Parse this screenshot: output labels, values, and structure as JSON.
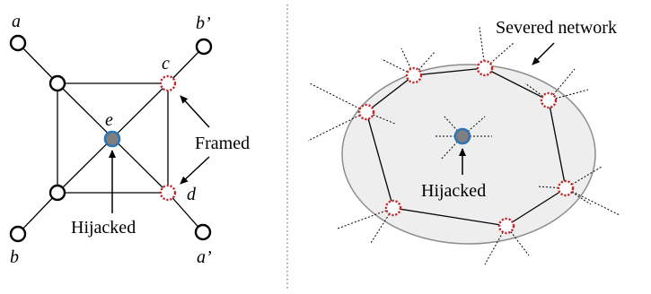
{
  "left_panel": {
    "node_labels": {
      "a": "a",
      "b_prime": "b’",
      "c": "c",
      "e": "e",
      "d": "d",
      "b": "b",
      "a_prime": "a’"
    },
    "framed_label": "Framed",
    "hijacked_label": "Hijacked"
  },
  "right_panel": {
    "severed_label": "Severed network",
    "hijacked_label": "Hijacked"
  },
  "colors": {
    "framed_node": "#c0282a",
    "hijacked_fill": "#7f7f7f",
    "hijacked_stroke": "#2e75b6",
    "severed_area": "#eeeeee",
    "severed_outline": "#8c8c8c"
  }
}
